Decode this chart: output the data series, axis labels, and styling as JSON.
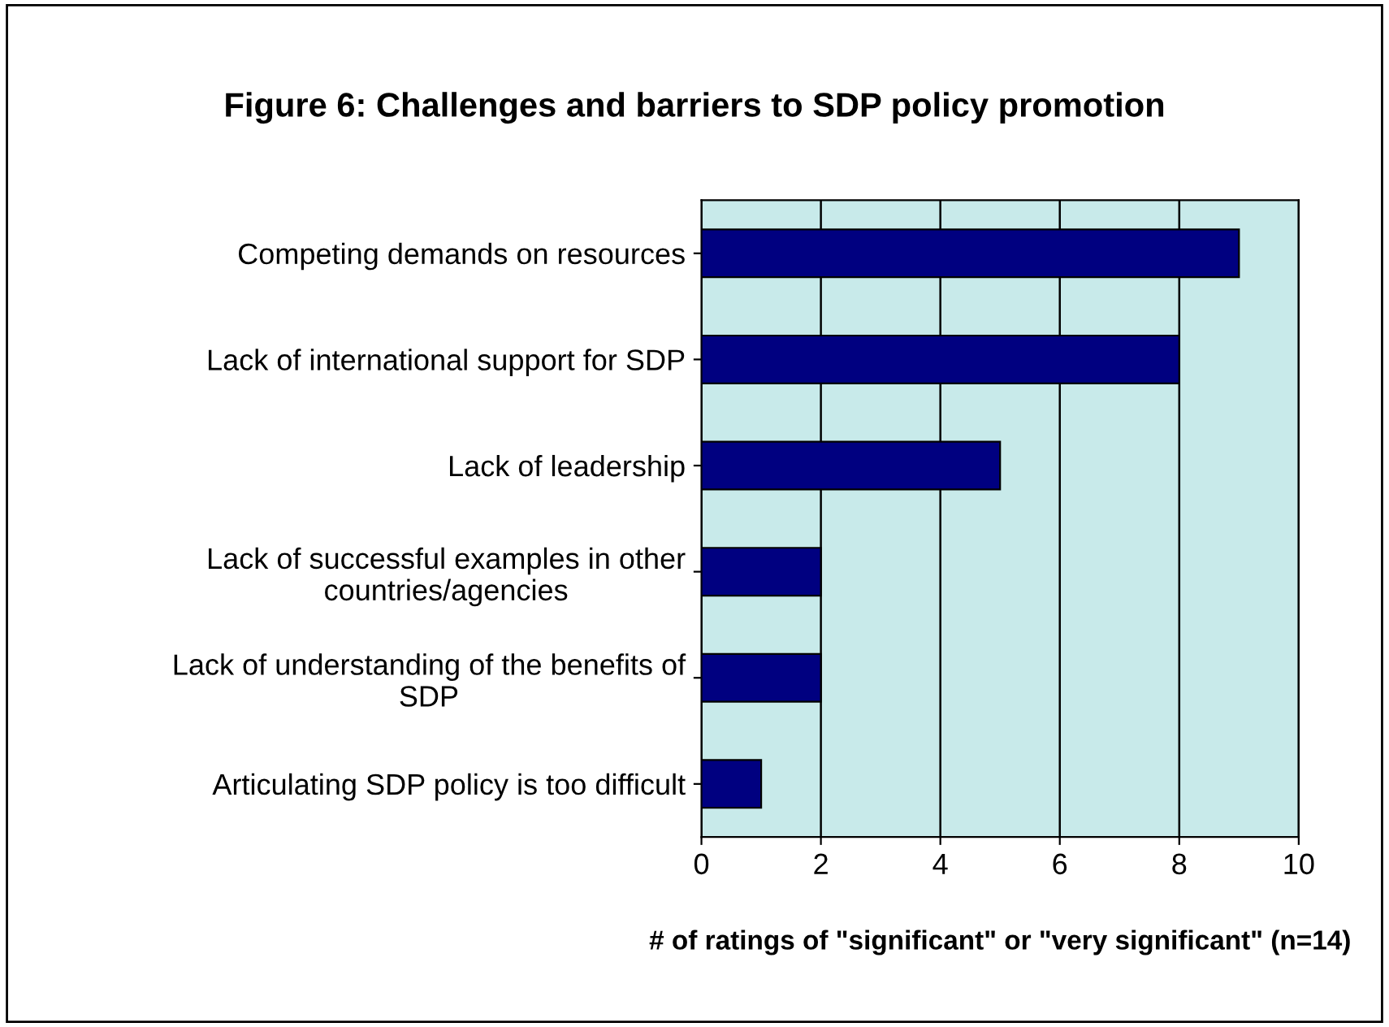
{
  "chart_data": {
    "type": "bar",
    "orientation": "horizontal",
    "title": "Figure 6: Challenges and barriers to SDP policy promotion",
    "xlabel": "# of ratings of \"significant\" or \"very significant\" (n=14)",
    "categories": [
      "Competing demands on resources",
      "Lack of international support for SDP",
      "Lack of leadership",
      "Lack of successful examples in other\ncountries/agencies",
      "Lack of understanding of the benefits of\nSDP",
      "Articulating SDP policy is too difficult"
    ],
    "values": [
      9,
      8,
      5,
      2,
      2,
      1
    ],
    "color": "#000080",
    "xlim": [
      0,
      10
    ],
    "xticks": [
      0,
      2,
      4,
      6,
      8,
      10
    ],
    "grid": "x"
  }
}
